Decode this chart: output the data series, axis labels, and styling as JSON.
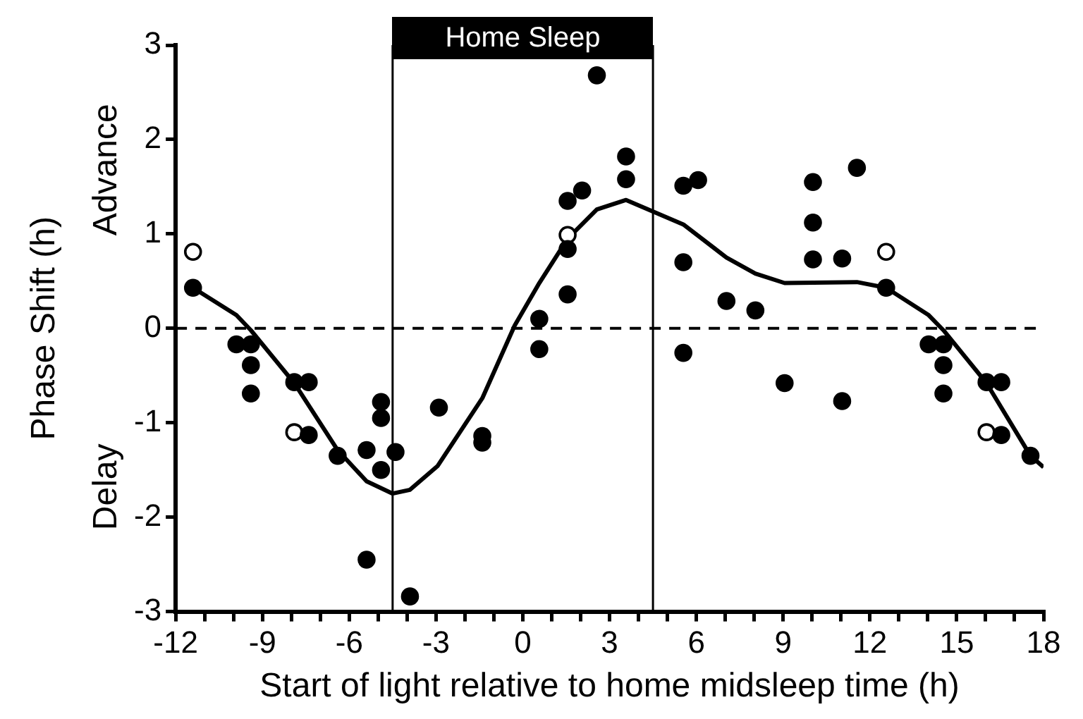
{
  "chart_data": {
    "type": "scatter",
    "xlabel": "Start of light relative to home midsleep time (h)",
    "ylabel": "Phase Shift (h)",
    "annotations": [
      "Advance",
      "Delay",
      "Home Sleep"
    ],
    "xlim": [
      -12,
      18
    ],
    "xticks": [
      -12,
      {
        "value": -11,
        "label": null
      },
      {
        "value": -10,
        "label": null
      },
      -9,
      {
        "value": -8,
        "label": null
      },
      {
        "value": -7,
        "label": null
      },
      -6,
      {
        "value": -5,
        "label": null
      },
      {
        "value": -4,
        "label": null
      },
      -3,
      {
        "value": -2,
        "label": null
      },
      {
        "value": -1,
        "label": null
      },
      0,
      {
        "value": 1,
        "label": null
      },
      {
        "value": 2,
        "label": null
      },
      3,
      {
        "value": 4,
        "label": null
      },
      {
        "value": 5,
        "label": null
      },
      6,
      {
        "value": 7,
        "label": null
      },
      {
        "value": 8,
        "label": null
      },
      9,
      {
        "value": 10,
        "label": null
      },
      {
        "value": 11,
        "label": null
      },
      12,
      {
        "value": 13,
        "label": null
      },
      {
        "value": 14,
        "label": null
      },
      15,
      {
        "value": 16,
        "label": null
      },
      {
        "value": 17,
        "label": null
      },
      18
    ],
    "ylim": [
      -3,
      3
    ],
    "yticks": [
      -3,
      -2,
      -1,
      0,
      1,
      2,
      3
    ],
    "grid": false,
    "legend": false,
    "ref_lines": [
      {
        "axis": "y",
        "value": 0,
        "line_style": "dashed",
        "color": "#000000"
      },
      {
        "axis": "x",
        "value": -4.5,
        "line_style": "solid",
        "color": "#000000"
      },
      {
        "axis": "x",
        "value": 4.5,
        "line_style": "solid",
        "color": "#000000"
      }
    ],
    "series": [
      {
        "marker": "circle",
        "color": "#000000",
        "x": [
          -11.4,
          -9.9,
          -9.4,
          -9.4,
          -9.4,
          -7.9,
          -7.4,
          -7.4,
          -6.4,
          -5.4,
          -4.9,
          -4.9,
          -4.9,
          -4.4,
          -5.4,
          -3.9,
          -2.9,
          -1.4,
          -1.4,
          0.57,
          0.57,
          1.55,
          1.55,
          1.55,
          2.05,
          2.56,
          3.57,
          3.57,
          5.55,
          6.06,
          5.55,
          5.55,
          7.04,
          8.04,
          9.05,
          10.03,
          10.03,
          10.03,
          11.04,
          11.04,
          11.55,
          12.56,
          14.03,
          14.54,
          14.54,
          14.54,
          16.03,
          16.54,
          16.54,
          17.55
        ],
        "values": [
          0.43,
          -0.17,
          -0.17,
          -0.39,
          -0.69,
          -0.57,
          -0.57,
          -1.13,
          -1.35,
          -1.29,
          -0.78,
          -0.95,
          -1.5,
          -1.31,
          -2.45,
          -2.84,
          -0.84,
          -1.14,
          -1.21,
          0.1,
          -0.22,
          0.36,
          0.84,
          1.35,
          1.46,
          2.68,
          1.82,
          1.58,
          1.51,
          1.57,
          0.7,
          -0.26,
          0.29,
          0.19,
          -0.58,
          1.55,
          1.12,
          0.73,
          0.74,
          -0.77,
          1.7,
          0.43,
          -0.17,
          -0.17,
          -0.39,
          -0.69,
          -0.57,
          -0.57,
          -1.13,
          -1.35
        ]
      },
      {
        "marker": "circle",
        "color": "#ffffff",
        "x": [
          -11.4,
          -7.9,
          1.55,
          12.56,
          16.03
        ],
        "values": [
          0.81,
          -1.1,
          0.99,
          0.81,
          -1.1
        ]
      },
      {
        "type": "line",
        "marker": "none",
        "line_style": "solid",
        "color": "#000000",
        "x": [
          -11.4,
          -9.9,
          -9.4,
          -7.9,
          -6.4,
          -5.4,
          -4.5,
          -3.9,
          -2.95,
          -1.4,
          -0.28,
          0.57,
          1.55,
          2.56,
          3.57,
          5.55,
          7.04,
          8.04,
          9.05,
          11.55,
          12.56,
          14.03,
          14.54,
          16.03,
          17.55,
          18
        ],
        "values": [
          0.43,
          0.14,
          -0.02,
          -0.58,
          -1.29,
          -1.62,
          -1.75,
          -1.71,
          -1.46,
          -0.74,
          0.03,
          0.48,
          0.95,
          1.26,
          1.36,
          1.1,
          0.75,
          0.58,
          0.48,
          0.49,
          0.43,
          0.14,
          -0.02,
          -0.58,
          -1.35,
          -1.47
        ]
      }
    ]
  }
}
